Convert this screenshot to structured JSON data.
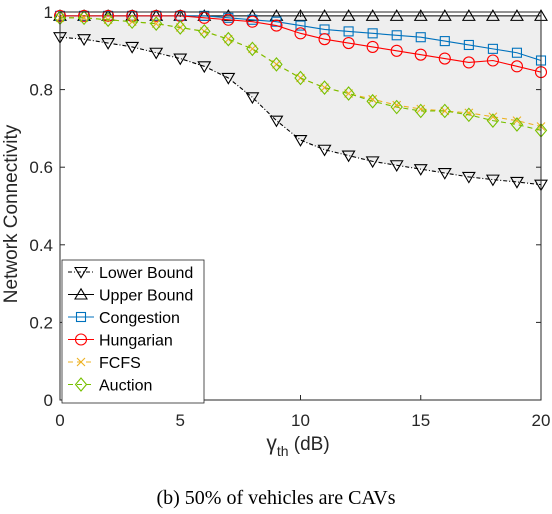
{
  "chart_data": {
    "type": "line",
    "xlabel_main": "γ",
    "xlabel_sub": "th",
    "xlabel_unit": " (dB)",
    "ylabel": "Network Connectivity",
    "xlim": [
      0,
      20
    ],
    "ylim": [
      0,
      1
    ],
    "xticks": [
      0,
      5,
      10,
      15,
      20
    ],
    "xtick_labels": [
      "0",
      "5",
      "10",
      "15",
      "20"
    ],
    "yticks": [
      0,
      0.2,
      0.4,
      0.6,
      0.8,
      1
    ],
    "ytick_labels": [
      "0",
      "0.2",
      "0.4",
      "0.6",
      "0.8",
      "1"
    ],
    "grid": false,
    "legend_position": "bottom-left",
    "shaded_region_between": [
      "Lower Bound",
      "Upper Bound"
    ],
    "shade_color": "#eeeeee",
    "x": [
      0,
      1,
      2,
      3,
      4,
      5,
      6,
      7,
      8,
      9,
      10,
      11,
      12,
      13,
      14,
      15,
      16,
      17,
      18,
      19,
      20
    ],
    "series": [
      {
        "name": "Lower Bound",
        "color": "#000000",
        "marker": "triangle-down",
        "dash": "4 2 1 2",
        "values": [
          0.935,
          0.93,
          0.92,
          0.91,
          0.895,
          0.88,
          0.86,
          0.83,
          0.78,
          0.72,
          0.67,
          0.645,
          0.63,
          0.615,
          0.605,
          0.595,
          0.585,
          0.575,
          0.568,
          0.562,
          0.555
        ]
      },
      {
        "name": "Upper Bound",
        "color": "#000000",
        "marker": "triangle-up",
        "dash": "",
        "values": [
          0.99,
          0.99,
          0.99,
          0.99,
          0.99,
          0.99,
          0.99,
          0.99,
          0.99,
          0.99,
          0.99,
          0.99,
          0.99,
          0.99,
          0.99,
          0.99,
          0.99,
          0.99,
          0.99,
          0.99,
          0.99
        ]
      },
      {
        "name": "Congestion",
        "color": "#0072BD",
        "marker": "square",
        "dash": "",
        "values": [
          0.99,
          0.99,
          0.99,
          0.99,
          0.99,
          0.99,
          0.99,
          0.985,
          0.98,
          0.975,
          0.965,
          0.955,
          0.95,
          0.945,
          0.94,
          0.935,
          0.925,
          0.915,
          0.905,
          0.895,
          0.875
        ]
      },
      {
        "name": "Hungarian",
        "color": "#ff0000",
        "marker": "circle",
        "dash": "",
        "values": [
          0.99,
          0.99,
          0.99,
          0.99,
          0.99,
          0.99,
          0.985,
          0.98,
          0.975,
          0.965,
          0.945,
          0.93,
          0.92,
          0.91,
          0.9,
          0.89,
          0.88,
          0.87,
          0.875,
          0.86,
          0.845
        ]
      },
      {
        "name": "FCFS",
        "color": "#EDB120",
        "marker": "x",
        "dash": "5 4",
        "values": [
          0.985,
          0.985,
          0.98,
          0.975,
          0.97,
          0.96,
          0.95,
          0.93,
          0.905,
          0.865,
          0.83,
          0.805,
          0.79,
          0.775,
          0.76,
          0.75,
          0.745,
          0.74,
          0.73,
          0.72,
          0.705
        ]
      },
      {
        "name": "Auction",
        "color": "#77c000",
        "marker": "diamond",
        "dash": "5 4",
        "values": [
          0.985,
          0.985,
          0.98,
          0.975,
          0.97,
          0.96,
          0.95,
          0.93,
          0.905,
          0.865,
          0.83,
          0.805,
          0.79,
          0.77,
          0.755,
          0.745,
          0.745,
          0.735,
          0.72,
          0.71,
          0.695
        ]
      }
    ]
  },
  "caption": "(b) 50% of vehicles are CAVs"
}
